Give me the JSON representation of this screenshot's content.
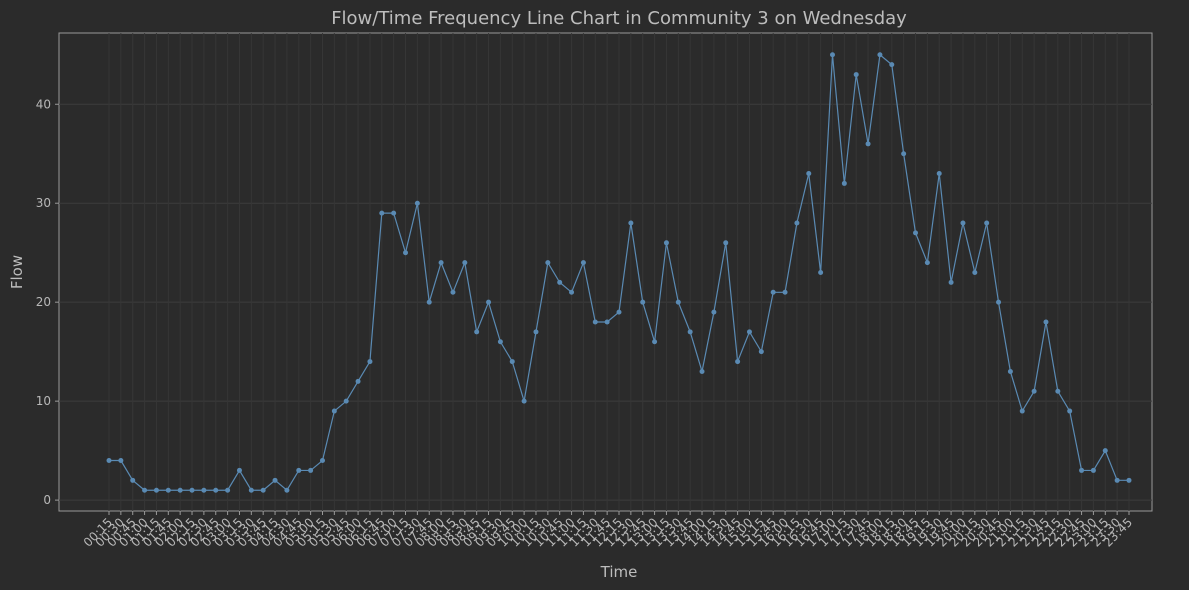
{
  "chart_data": {
    "type": "line",
    "title": "Flow/Time Frequency Line Chart in Community 3 on Wednesday",
    "x_label": "Time",
    "y_label": "Flow",
    "categories": [
      "00:15",
      "00:30",
      "00:45",
      "01:00",
      "01:15",
      "01:45",
      "02:00",
      "02:15",
      "02:30",
      "02:45",
      "03:00",
      "03:15",
      "03:30",
      "03:45",
      "04:15",
      "04:30",
      "04:45",
      "05:00",
      "05:15",
      "05:30",
      "05:45",
      "06:00",
      "06:15",
      "06:45",
      "07:00",
      "07:15",
      "07:30",
      "07:45",
      "08:00",
      "08:15",
      "08:30",
      "08:45",
      "09:15",
      "09:30",
      "09:45",
      "10:00",
      "10:15",
      "10:30",
      "10:45",
      "11:00",
      "11:15",
      "11:30",
      "11:45",
      "12:15",
      "12:30",
      "12:45",
      "13:00",
      "13:15",
      "13:30",
      "13:45",
      "14:00",
      "14:15",
      "14:30",
      "14:45",
      "15:00",
      "15:15",
      "15:45",
      "16:00",
      "16:15",
      "16:30",
      "16:45",
      "17:00",
      "17:15",
      "17:30",
      "17:45",
      "18:00",
      "18:15",
      "18:30",
      "18:45",
      "19:15",
      "19:30",
      "19:45",
      "20:00",
      "20:15",
      "20:30",
      "20:45",
      "21:00",
      "21:15",
      "21:30",
      "21:45",
      "22:15",
      "22:30",
      "22:45",
      "23:00",
      "23:15",
      "23:30",
      "23:45"
    ],
    "series": [
      {
        "name": "Flow",
        "color": "#5a8ab3",
        "values": [
          4,
          4,
          2,
          1,
          1,
          1,
          1,
          1,
          1,
          1,
          1,
          3,
          1,
          1,
          2,
          1,
          3,
          3,
          4,
          9,
          10,
          12,
          14,
          29,
          29,
          25,
          30,
          20,
          24,
          21,
          24,
          17,
          20,
          16,
          14,
          10,
          17,
          24,
          22,
          21,
          24,
          18,
          18,
          19,
          28,
          20,
          16,
          26,
          20,
          17,
          13,
          19,
          26,
          14,
          17,
          15,
          21,
          21,
          28,
          33,
          23,
          45,
          32,
          43,
          36,
          45,
          44,
          35,
          27,
          24,
          33,
          22,
          28,
          23,
          28,
          20,
          13,
          9,
          11,
          18,
          11,
          9,
          3,
          3,
          5,
          2,
          2
        ]
      }
    ],
    "ylim": [
      -1.1,
      47.2
    ],
    "yticks": [
      0,
      10,
      20,
      30,
      40
    ],
    "grid": true
  }
}
